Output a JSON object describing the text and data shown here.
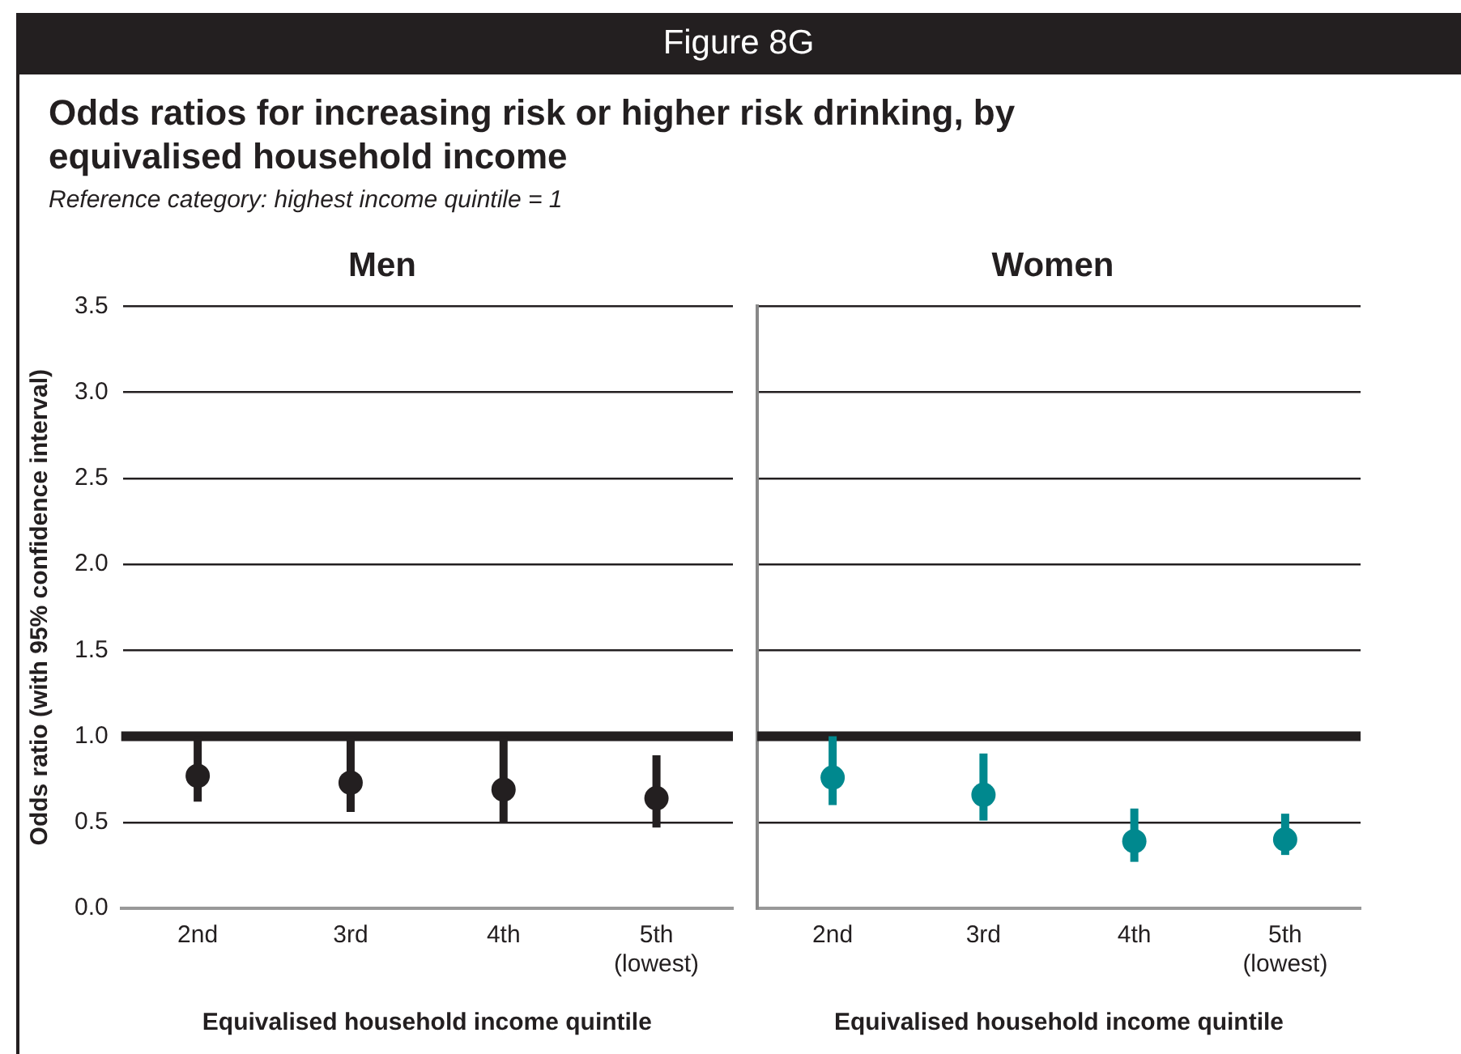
{
  "chart_data": [
    {
      "type": "scatter",
      "title": "Men",
      "subtitle": "Reference category: highest income quintile = 1",
      "annotations": [
        "Figure 8G",
        "Odds ratios for increasing risk or higher risk drinking, by equivalised household income"
      ],
      "xlabel": "Equivalised household income quintile",
      "ylabel": "Odds ratio (with 95% confidence interval)",
      "categories": [
        "2nd",
        "3rd",
        "4th",
        "5th (lowest)"
      ],
      "series": [
        {
          "color": "#231f20",
          "values": [
            0.77,
            0.73,
            0.69,
            0.64
          ],
          "errors": [
            [
              0.62,
              1.0
            ],
            [
              0.56,
              1.0
            ],
            [
              0.5,
              1.0
            ],
            [
              0.47,
              0.89
            ]
          ]
        }
      ],
      "ylim": [
        0,
        3.5
      ],
      "yticks": [
        {
          "value": 0,
          "label": "0.0"
        },
        0.5,
        {
          "value": 1,
          "label": "1.0"
        },
        1.5,
        {
          "value": 2,
          "label": "2.0"
        },
        2.5,
        {
          "value": 3,
          "label": "3.0"
        },
        3.5
      ],
      "grid": "y",
      "marker": "circle",
      "legend": false,
      "ref_lines": [
        {
          "axis": "y",
          "value": 1,
          "color": "#231f20"
        }
      ]
    },
    {
      "type": "scatter",
      "title": "Women",
      "xlabel": "Equivalised household income quintile",
      "categories": [
        "2nd",
        "3rd",
        "4th",
        "5th (lowest)"
      ],
      "series": [
        {
          "color": "#00888e",
          "values": [
            0.76,
            0.66,
            0.39,
            0.4
          ],
          "errors": [
            [
              0.6,
              1.0
            ],
            [
              0.51,
              0.9
            ],
            [
              0.27,
              0.58
            ],
            [
              0.31,
              0.55
            ]
          ]
        }
      ],
      "ylim": [
        0,
        3.5
      ],
      "yticks": [
        0,
        0.5,
        1,
        1.5,
        2,
        2.5,
        3,
        3.5
      ],
      "grid": "y",
      "marker": "circle",
      "legend": false,
      "tick_labels": "x",
      "ref_lines": [
        {
          "axis": "y",
          "value": 1,
          "color": "#231f20"
        }
      ]
    }
  ]
}
